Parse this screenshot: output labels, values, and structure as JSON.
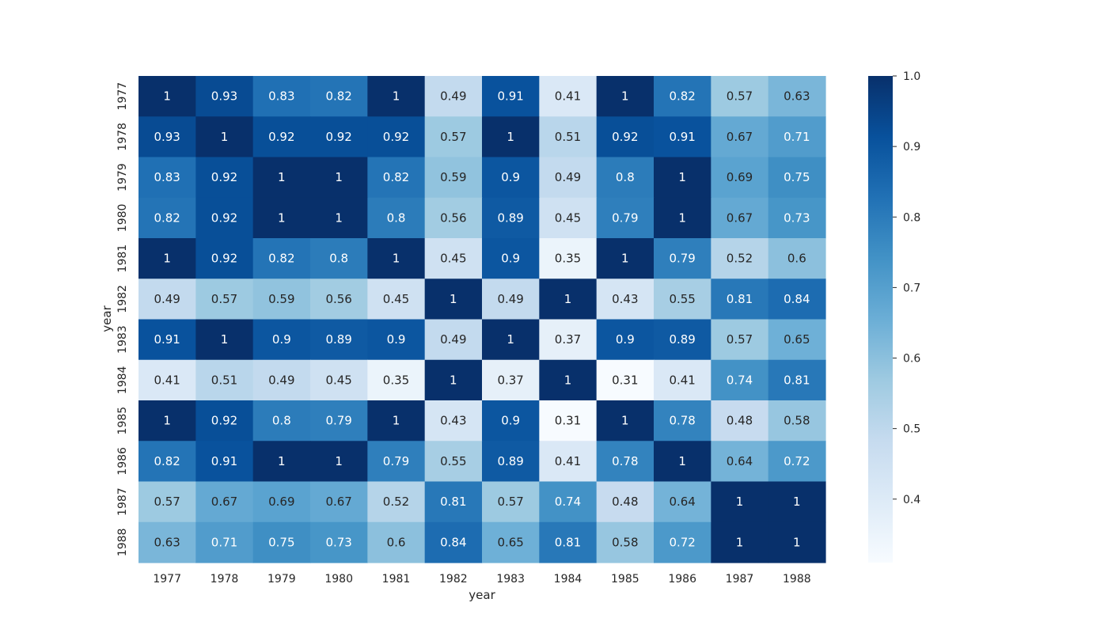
{
  "chart_data": {
    "type": "heatmap",
    "title": "",
    "xlabel": "year",
    "ylabel": "year",
    "x_categories": [
      "1977",
      "1978",
      "1979",
      "1980",
      "1981",
      "1982",
      "1983",
      "1984",
      "1985",
      "1986",
      "1987",
      "1988"
    ],
    "y_categories": [
      "1977",
      "1978",
      "1979",
      "1980",
      "1981",
      "1982",
      "1983",
      "1984",
      "1985",
      "1986",
      "1987",
      "1988"
    ],
    "values": [
      [
        1,
        0.93,
        0.83,
        0.82,
        1,
        0.49,
        0.91,
        0.41,
        1,
        0.82,
        0.57,
        0.63
      ],
      [
        0.93,
        1,
        0.92,
        0.92,
        0.92,
        0.57,
        1,
        0.51,
        0.92,
        0.91,
        0.67,
        0.71
      ],
      [
        0.83,
        0.92,
        1,
        1,
        0.82,
        0.59,
        0.9,
        0.49,
        0.8,
        1,
        0.69,
        0.75
      ],
      [
        0.82,
        0.92,
        1,
        1,
        0.8,
        0.56,
        0.89,
        0.45,
        0.79,
        1,
        0.67,
        0.73
      ],
      [
        1,
        0.92,
        0.82,
        0.8,
        1,
        0.45,
        0.9,
        0.35,
        1,
        0.79,
        0.52,
        0.6
      ],
      [
        0.49,
        0.57,
        0.59,
        0.56,
        0.45,
        1,
        0.49,
        1,
        0.43,
        0.55,
        0.81,
        0.84
      ],
      [
        0.91,
        1,
        0.9,
        0.89,
        0.9,
        0.49,
        1,
        0.37,
        0.9,
        0.89,
        0.57,
        0.65
      ],
      [
        0.41,
        0.51,
        0.49,
        0.45,
        0.35,
        1,
        0.37,
        1,
        0.31,
        0.41,
        0.74,
        0.81
      ],
      [
        1,
        0.92,
        0.8,
        0.79,
        1,
        0.43,
        0.9,
        0.31,
        1,
        0.78,
        0.48,
        0.58
      ],
      [
        0.82,
        0.91,
        1,
        1,
        0.79,
        0.55,
        0.89,
        0.41,
        0.78,
        1,
        0.64,
        0.72
      ],
      [
        0.57,
        0.67,
        0.69,
        0.67,
        0.52,
        0.81,
        0.57,
        0.74,
        0.48,
        0.64,
        1,
        1
      ],
      [
        0.63,
        0.71,
        0.75,
        0.73,
        0.6,
        0.84,
        0.65,
        0.81,
        0.58,
        0.72,
        1,
        1
      ]
    ],
    "colorbar": {
      "min": 0.31,
      "max": 1.0,
      "ticks": [
        0.4,
        0.5,
        0.6,
        0.7,
        0.8,
        0.9,
        1.0
      ],
      "tick_labels": [
        "0.4",
        "0.5",
        "0.6",
        "0.7",
        "0.8",
        "0.9",
        "1.0"
      ],
      "colormap": "Blues",
      "colormap_stops": [
        "#f7fbff",
        "#deebf7",
        "#c6dbef",
        "#9ecae1",
        "#6baed6",
        "#4292c6",
        "#2171b5",
        "#08519c",
        "#08306b"
      ]
    },
    "grid": false,
    "annotated": true
  }
}
